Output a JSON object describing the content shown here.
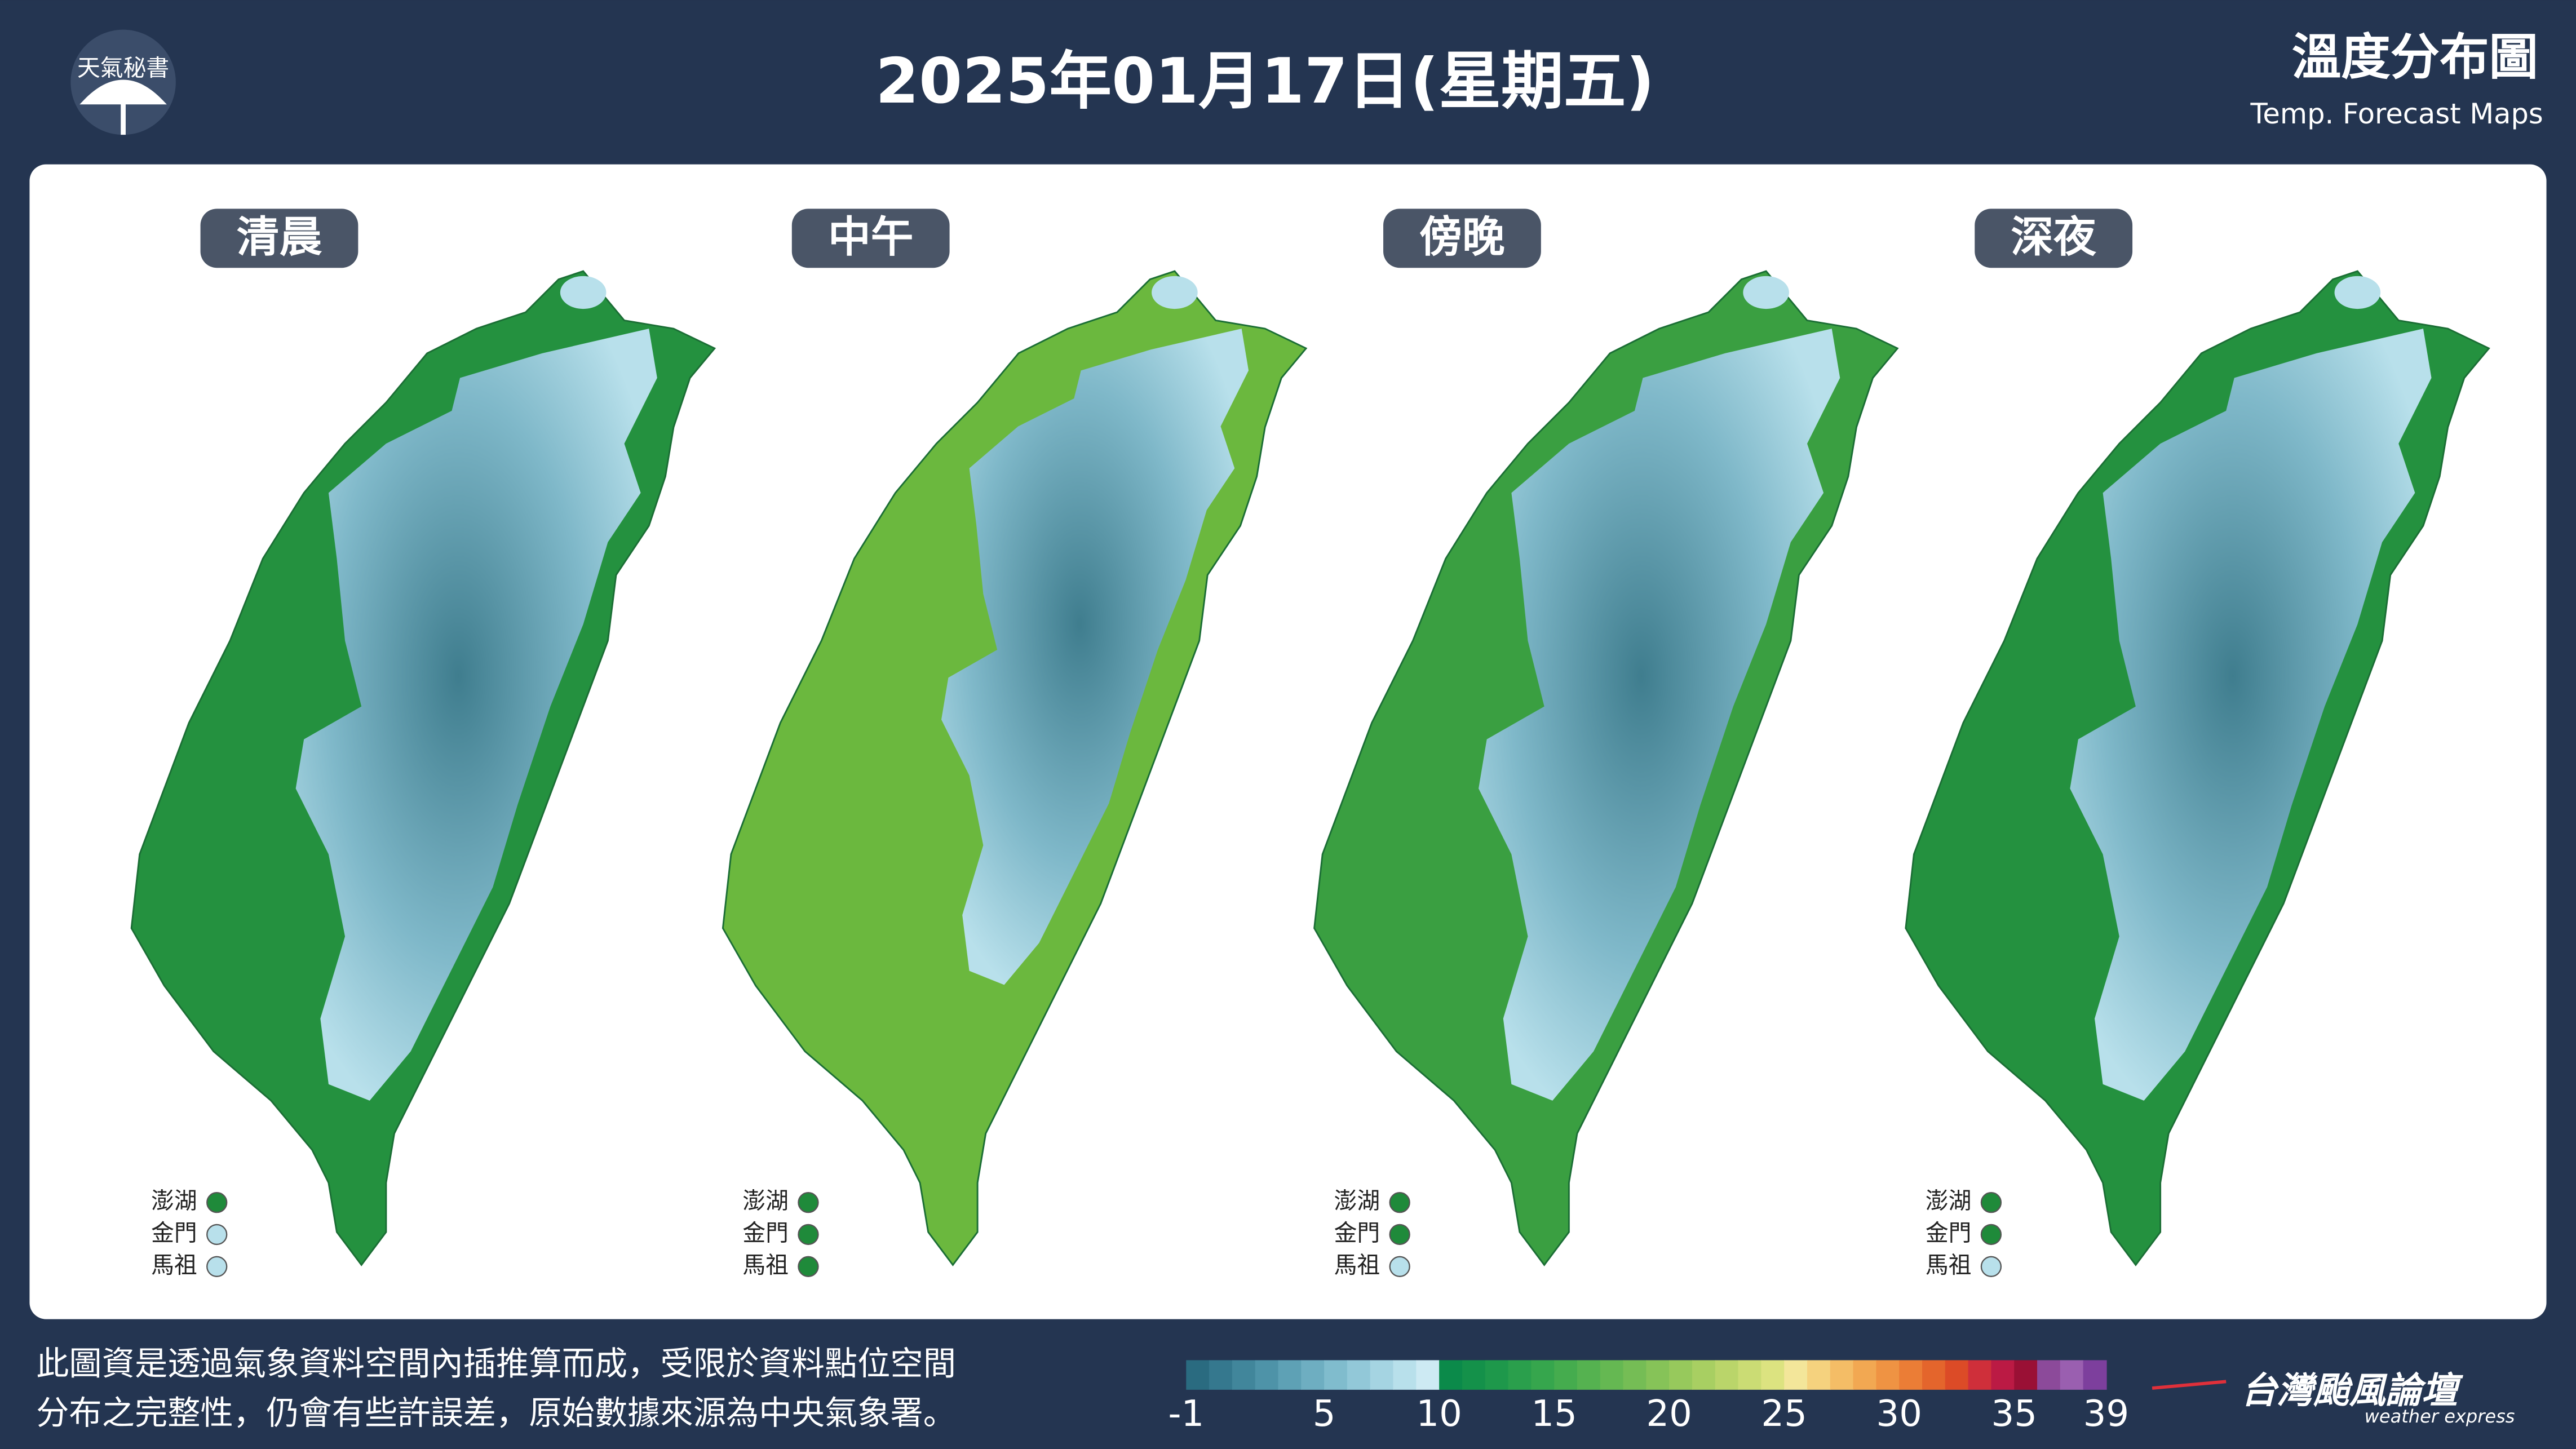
{
  "header": {
    "brand": "天氣秘書",
    "title": "2025年01月17日(星期五)",
    "product": "溫度分布圖",
    "product_en": "Temp. Forecast Maps"
  },
  "panels": [
    {
      "label": "清晨",
      "color": "#24913f",
      "islands": [
        {
          "name": "澎湖",
          "color": "#1f8a3a"
        },
        {
          "name": "金門",
          "color": "#b8e0eb"
        },
        {
          "name": "馬祖",
          "color": "#b8e0eb"
        }
      ]
    },
    {
      "label": "中午",
      "color": "#6bb83e",
      "islands": [
        {
          "name": "澎湖",
          "color": "#1f8a3a"
        },
        {
          "name": "金門",
          "color": "#1f8a3a"
        },
        {
          "name": "馬祖",
          "color": "#1f8a3a"
        }
      ]
    },
    {
      "label": "傍晚",
      "color": "#3a9f41",
      "islands": [
        {
          "name": "澎湖",
          "color": "#1f8a3a"
        },
        {
          "name": "金門",
          "color": "#1f8a3a"
        },
        {
          "name": "馬祖",
          "color": "#b8e0eb"
        }
      ]
    },
    {
      "label": "深夜",
      "color": "#24913f",
      "islands": [
        {
          "name": "澎湖",
          "color": "#1f8a3a"
        },
        {
          "name": "金門",
          "color": "#1f8a3a"
        },
        {
          "name": "馬祖",
          "color": "#b8e0eb"
        }
      ]
    }
  ],
  "footer": {
    "note": [
      "此圖資是透過氣象資料空間內插推算而成，受限於資料點位空間",
      "分布之完整性，仍會有些許誤差，原始數據來源為中央氣象署。"
    ],
    "logo": "台灣颱風論壇",
    "logo_en": "weather express"
  },
  "colorbar": {
    "range": [
      -1,
      39
    ],
    "ticks": [
      -1,
      5,
      10,
      15,
      20,
      25,
      30,
      35,
      39
    ],
    "colors": [
      "#2a6b80",
      "#35788e",
      "#41869b",
      "#4e93a8",
      "#5ea1b5",
      "#6eaec1",
      "#80bccd",
      "#92c8d8",
      "#a5d4e2",
      "#b8e0eb",
      "#cdeaf3",
      "#0b8a4a",
      "#14914a",
      "#1e984b",
      "#2a9f4c",
      "#36a64d",
      "#45ac4e",
      "#55b250",
      "#65b852",
      "#75bd55",
      "#86c358",
      "#97c95c",
      "#a8cf62",
      "#bad56a",
      "#cbdc74",
      "#dce380",
      "#f3e69a",
      "#f5d27e",
      "#f4bd66",
      "#f2a852",
      "#ef9343",
      "#eb7d36",
      "#e4652c",
      "#dc4b27",
      "#cf2f3a",
      "#bb1a44",
      "#9a1035",
      "#8c4a9a",
      "#9a5fb0",
      "#7d3f9d"
    ]
  }
}
